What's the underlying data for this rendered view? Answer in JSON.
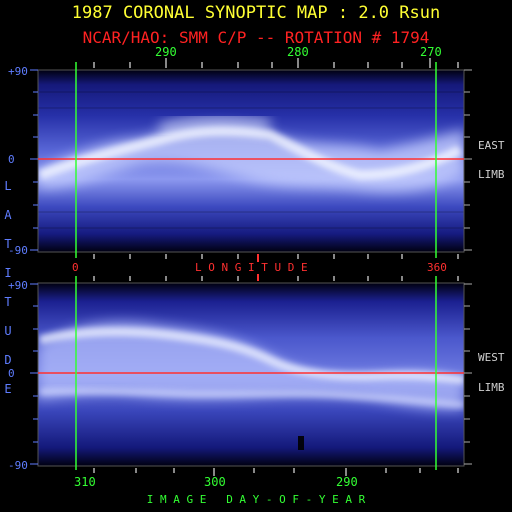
{
  "title": "1987 CORONAL SYNOPTIC MAP : 2.0 Rsun",
  "subtitle": "NCAR/HAO: SMM C/P -- ROTATION # 1794",
  "top_panel": {
    "top_axis_ticks": [
      "290",
      "280",
      "270"
    ],
    "lat_ticks": [
      "+90",
      "0",
      "-90"
    ],
    "side_label_1": "EAST",
    "side_label_2": "LIMB",
    "bottom_ticks": [
      "0",
      "360"
    ]
  },
  "longitude_label": "L O N G I T U D E",
  "latitude_label": "LATITUDE",
  "bottom_panel": {
    "lat_ticks": [
      "+90",
      "0",
      "-90"
    ],
    "side_label_1": "WEST",
    "side_label_2": "LIMB",
    "bottom_axis_ticks": [
      "310",
      "300",
      "290"
    ]
  },
  "xlabel": "I M A G E   D A Y - O F - Y E A R",
  "colors": {
    "title": "#ffff33",
    "subtitle": "#ff2222",
    "green_lines": "#33ff33",
    "equator": "#ff3030",
    "latitude": "#5f7dff",
    "map_dark": "#0a0d6a",
    "map_bright": "#e6ecff"
  }
}
